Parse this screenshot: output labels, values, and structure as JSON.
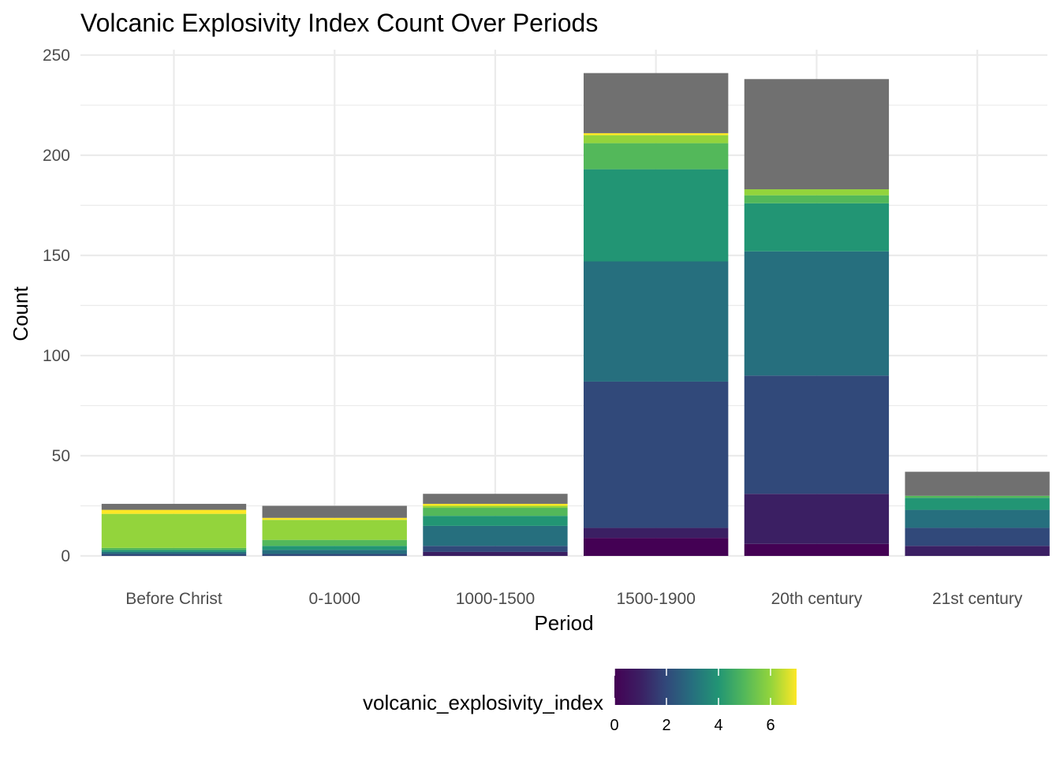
{
  "chart_data": {
    "type": "bar",
    "stacked": true,
    "title": "Volcanic Explosivity Index Count Over Periods",
    "xlabel": "Period",
    "ylabel": "Count",
    "ylim": [
      0,
      250
    ],
    "yticks": [
      0,
      50,
      100,
      150,
      200,
      250
    ],
    "grid": true,
    "categories": [
      "Before Christ",
      "0-1000",
      "1000-1500",
      "1500-1900",
      "20th century",
      "21st century"
    ],
    "series": [
      {
        "vei": 0,
        "color": "#440154",
        "values": [
          0,
          0,
          0,
          9,
          6,
          0
        ]
      },
      {
        "vei": 1,
        "color": "#3B1F63",
        "values": [
          0,
          0,
          2,
          5,
          25,
          5
        ]
      },
      {
        "vei": 2,
        "color": "#31497A",
        "values": [
          1,
          1,
          3,
          73,
          59,
          9
        ]
      },
      {
        "vei": 3,
        "color": "#266F7E",
        "values": [
          1,
          2,
          10,
          60,
          62,
          9
        ]
      },
      {
        "vei": 4,
        "color": "#229574",
        "values": [
          1,
          2,
          5,
          46,
          24,
          6
        ]
      },
      {
        "vei": 5,
        "color": "#53B85A",
        "values": [
          1,
          3,
          4,
          13,
          4,
          1
        ]
      },
      {
        "vei": 6,
        "color": "#93D43C",
        "values": [
          17,
          10,
          1,
          4,
          3,
          0
        ]
      },
      {
        "vei": 7,
        "color": "#FDE725",
        "values": [
          2,
          1,
          1,
          1,
          0,
          0
        ]
      },
      {
        "vei": "NA",
        "color": "#707070",
        "values": [
          3,
          6,
          5,
          30,
          55,
          12
        ]
      }
    ],
    "legend": {
      "title": "volcanic_explosivity_index",
      "position": "bottom",
      "type": "colorbar",
      "range": [
        0,
        7
      ],
      "ticks": [
        "0",
        "2",
        "4",
        "6"
      ],
      "tick_values": [
        0,
        2,
        4,
        6
      ],
      "gradient": [
        "#440154",
        "#3B1F63",
        "#31497A",
        "#266F7E",
        "#229574",
        "#53B85A",
        "#93D43C",
        "#FDE725"
      ]
    }
  }
}
